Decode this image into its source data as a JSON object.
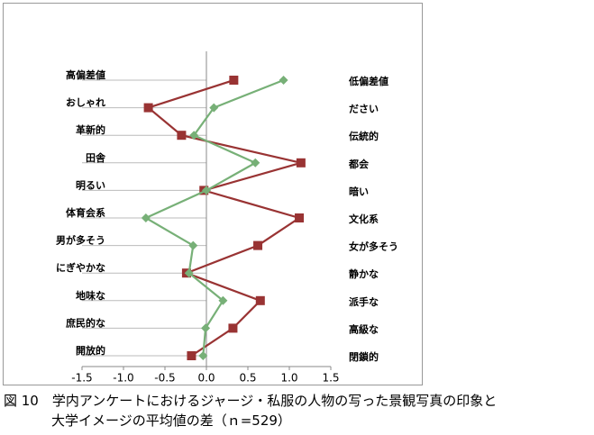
{
  "chart_data": {
    "type": "profile-line",
    "categories": [
      "高偏差値",
      "おしゃれ",
      "革新的",
      "田舎",
      "明るい",
      "体育会系",
      "男が多そう",
      "にぎやかな",
      "地味な",
      "庶民的な",
      "開放的"
    ],
    "right_categories": [
      "低偏差値",
      "ださい",
      "伝統的",
      "都会",
      "暗い",
      "文化系",
      "女が多そう",
      "静かな",
      "派手な",
      "高級な",
      "閉鎖的"
    ],
    "series": [
      {
        "color": "#993333",
        "marker": "square",
        "values": [
          0.33,
          -0.7,
          -0.3,
          1.14,
          -0.03,
          1.12,
          0.62,
          -0.24,
          0.65,
          0.32,
          -0.18
        ]
      },
      {
        "color": "#77b077",
        "marker": "diamond",
        "values": [
          0.93,
          0.09,
          -0.15,
          0.59,
          0.0,
          -0.73,
          -0.16,
          -0.21,
          0.2,
          -0.01,
          -0.04
        ]
      }
    ],
    "xlim": [
      -1.5,
      1.5
    ],
    "xticks": [
      -1.5,
      {
        "value": -1,
        "label": "-1.0"
      },
      -0.5,
      {
        "value": 0,
        "label": "0.0"
      },
      0.5,
      {
        "value": 1,
        "label": "1.0"
      },
      1.5
    ],
    "caption": [
      "図 10　学内アンケートにおけるジャージ・私服の人物の写った景観写真の印象と",
      "大学イメージの平均値の差（ｎ=529）"
    ]
  }
}
